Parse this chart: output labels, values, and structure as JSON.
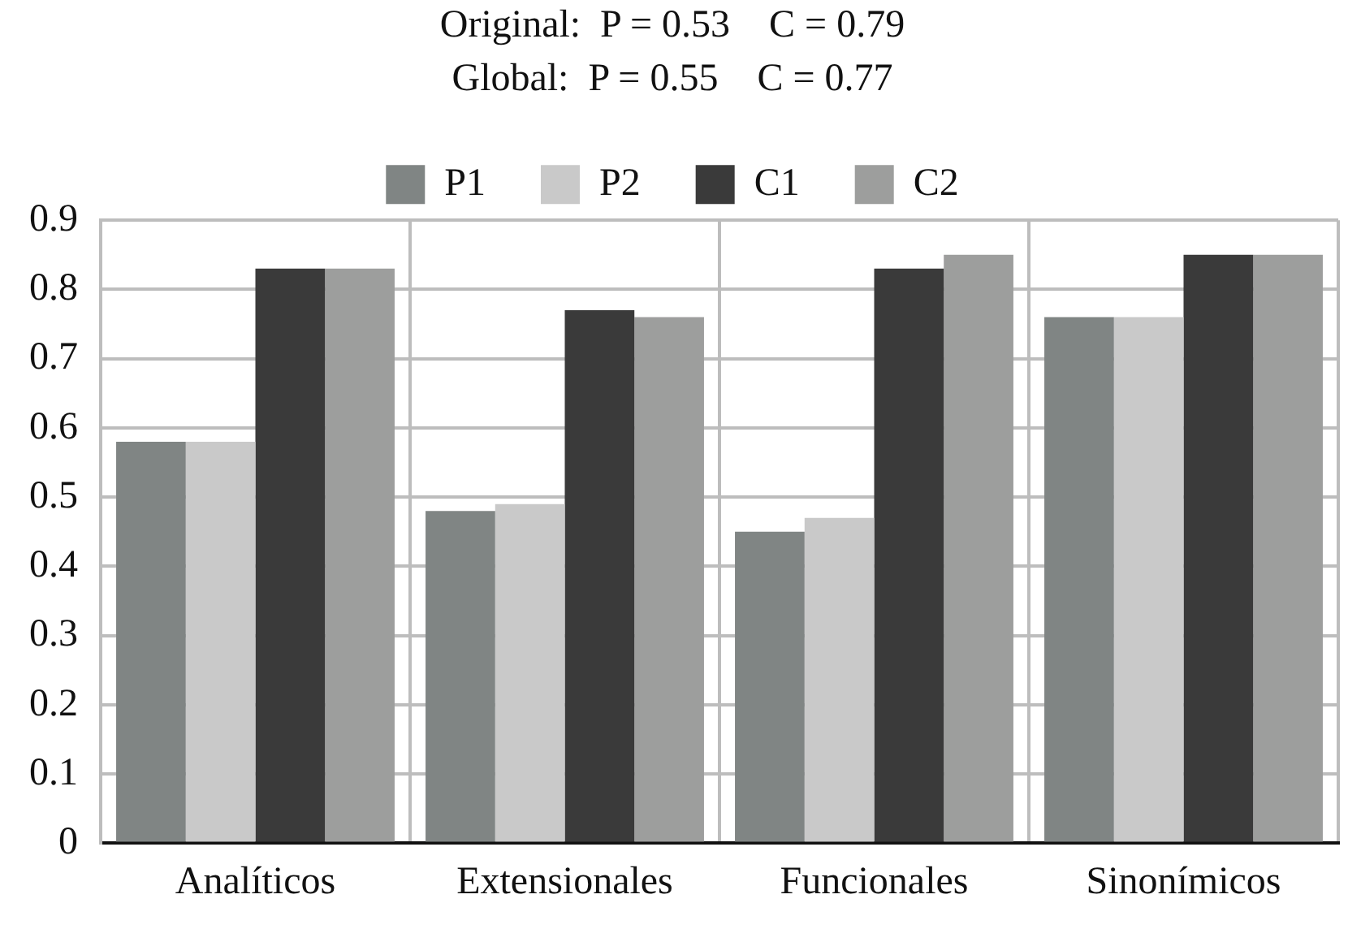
{
  "chart_data": {
    "type": "bar",
    "title": "Original:  P = 0.53    C = 0.79",
    "subtitle": "Global:  P = 0.55    C = 0.77",
    "categories": [
      "Analíticos",
      "Extensionales",
      "Funcionales",
      "Sinonímicos"
    ],
    "series": [
      {
        "name": "P1",
        "color": "#808584",
        "values": [
          0.58,
          0.48,
          0.45,
          0.76
        ]
      },
      {
        "name": "P2",
        "color": "#c9c9c9",
        "values": [
          0.58,
          0.49,
          0.47,
          0.76
        ]
      },
      {
        "name": "C1",
        "color": "#3a3a3a",
        "values": [
          0.83,
          0.77,
          0.83,
          0.85
        ]
      },
      {
        "name": "C2",
        "color": "#9d9e9d",
        "values": [
          0.83,
          0.76,
          0.85,
          0.85
        ]
      }
    ],
    "ylim": [
      0,
      0.9
    ],
    "yticks": [
      0,
      0.1,
      0.2,
      0.3,
      0.4,
      0.5,
      0.6,
      0.7,
      0.8,
      0.9
    ],
    "grid": true,
    "legend": "top"
  }
}
